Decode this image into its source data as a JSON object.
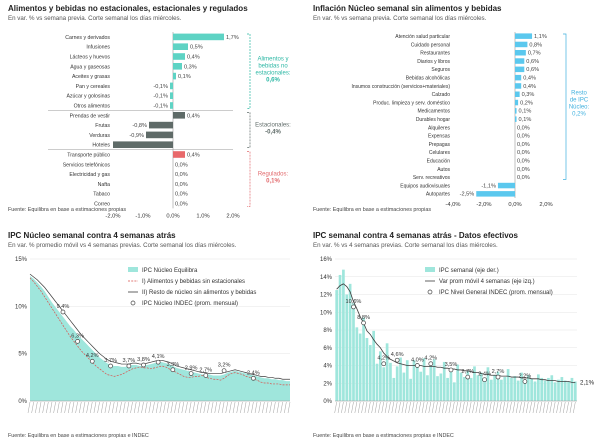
{
  "colors": {
    "teal": "#5ed3c4",
    "teal_light": "#9fe6dc",
    "teal_text": "#2bb7a4",
    "gray": "#5f6b68",
    "red": "#e8696b",
    "red_text": "#e26a6d",
    "blue": "#5bc8ee",
    "blue_text": "#3fb0de",
    "line_dark": "#3c3c3c",
    "line_red": "#d9534f"
  },
  "panels": {
    "p1": {
      "title": "Alimentos y bebidas no estacionales, estacionales y regulados",
      "subtitle": "En var. % vs semana previa. Corte semanal los días miércoles.",
      "source": "Fuente: Equilibra en base a estimaciones propias"
    },
    "p2": {
      "title": "Inflación Núcleo semanal sin alimentos y bebidas",
      "subtitle": "En var. % vs semana previa. Corte semanal los días miércoles.",
      "source": "Fuente: Equilibra en base a estimaciones propias"
    },
    "p3": {
      "title": "IPC Núcleo semanal contra 4 semanas atrás",
      "subtitle": "En var. % promedio móvil vs 4 semanas previas. Corte semanal los días miércoles.",
      "source": "Fuente: Equilibra en base a estimaciones propias e INDEC"
    },
    "p4": {
      "title": "IPC semanal contra 4 semanas atrás - Datos efectivos",
      "subtitle": "En var. % vs 4 semanas previas. Corte semanal los días miércoles.",
      "source": "Fuente: Equilibra en base a estimaciones propias e INDEC"
    }
  },
  "chart_data": [
    {
      "type": "bar",
      "orientation": "horizontal",
      "categories": [
        "Carnes y derivados",
        "Infusiones",
        "Lácteos y huevos",
        "Agua y gaseosas",
        "Aceites y grasas",
        "Pan y cereales",
        "Azúcar y golosinas",
        "Otros alimentos",
        "Prendas de vestir",
        "Frutas",
        "Verduras",
        "Hoteles",
        "Transporte público",
        "Servicios telefónicos",
        "Electricidad y gas",
        "Nafta",
        "Tabaco",
        "Correo"
      ],
      "values": [
        1.7,
        0.5,
        0.4,
        0.3,
        0.1,
        -0.1,
        -0.1,
        -0.1,
        0.4,
        -0.8,
        -0.9,
        -2.0,
        0.4,
        0.0,
        0.0,
        0.0,
        0.0,
        0.0
      ],
      "data_labels": [
        "1,7%",
        "0,5%",
        "0,4%",
        "0,3%",
        "0,1%",
        "-0,1%",
        "-0,1%",
        "-0,1%",
        "0,4%",
        "-0,8%",
        "-0,9%",
        "",
        "0,4%",
        "0,0%",
        "0,0%",
        "0,0%",
        "0,0%",
        "0,0%"
      ],
      "groups": [
        {
          "label": "Alimentos y bebidas no estacionales:",
          "value": "0,6%",
          "from": 0,
          "to": 7,
          "color": "#2bb7a4"
        },
        {
          "label": "Estacionales:",
          "value": "-0,4%",
          "from": 8,
          "to": 11,
          "color": "#5f6b68"
        },
        {
          "label": "Regulados:",
          "value": "0,1%",
          "from": 12,
          "to": 17,
          "color": "#e26a6d"
        }
      ],
      "xlim": [
        -2.0,
        2.0
      ],
      "xticks": [
        "-2,0%",
        "-1,0%",
        "0,0%",
        "1,0%",
        "2,0%"
      ]
    },
    {
      "type": "bar",
      "orientation": "horizontal",
      "categories": [
        "Atención salud particular",
        "Cuidado personal",
        "Restaurantes",
        "Diarios y libros",
        "Seguros",
        "Bebidas alcohólicas",
        "Insumos construcción (servicios+materiales)",
        "Calzado",
        "Produc. limpieza y serv. doméstico",
        "Medicamentos",
        "Durables hogar",
        "Alquileres",
        "Expensas",
        "Prepagas",
        "Celulares",
        "Educación",
        "Autos",
        "Serv. recreativos",
        "Equipos audiovisuales",
        "Autopartes"
      ],
      "values": [
        1.1,
        0.8,
        0.7,
        0.6,
        0.6,
        0.4,
        0.4,
        0.3,
        0.2,
        0.1,
        0.1,
        0.0,
        0.0,
        0.0,
        0.0,
        0.0,
        0.0,
        0.0,
        -1.1,
        -2.5
      ],
      "data_labels": [
        "1,1%",
        "0,8%",
        "0,7%",
        "0,6%",
        "0,6%",
        "0,4%",
        "0,4%",
        "0,3%",
        "0,2%",
        "0,1%",
        "0,1%",
        "0,0%",
        "0,0%",
        "0,0%",
        "0,0%",
        "0,0%",
        "0,0%",
        "0,0%",
        "-1,1%",
        "-2,5%"
      ],
      "annotation": {
        "label": "Resto de IPC Núcleo:",
        "value": "0,2%"
      },
      "xlim": [
        -4.0,
        2.0
      ],
      "xticks": [
        "-4,0%",
        "-2,0%",
        "0,0%",
        "2,0%"
      ]
    },
    {
      "type": "bar+line",
      "ylim": [
        0,
        15
      ],
      "yticks": [
        "0%",
        "5%",
        "10%",
        "15%"
      ],
      "series": [
        {
          "name": "IPC Núcleo Equilibra",
          "kind": "area",
          "values": [
            13.2,
            12.9,
            12.5,
            12.1,
            11.6,
            11.0,
            10.4,
            9.9,
            9.4,
            8.9,
            8.4,
            7.9,
            7.5,
            7.0,
            6.6,
            6.2,
            5.8,
            5.4,
            5.0,
            4.6,
            4.3,
            4.0,
            3.8,
            3.7,
            3.7,
            3.6,
            3.6,
            3.7,
            3.8,
            3.8,
            3.7,
            3.7,
            3.8,
            3.9,
            4.0,
            4.1,
            4.1,
            4.0,
            3.9,
            3.7,
            3.5,
            3.4,
            3.3,
            3.2,
            3.1,
            3.0,
            2.9,
            2.8,
            2.8,
            2.8,
            2.7,
            2.7,
            2.7,
            2.8,
            3.0,
            3.1,
            3.2,
            3.1,
            3.0,
            2.9,
            2.8,
            2.7,
            2.6,
            2.5,
            2.4,
            2.4,
            2.3,
            2.3,
            2.2,
            2.2,
            2.1,
            2.1
          ]
        },
        {
          "name": "I) Alimentos y bebidas sin estacionales",
          "kind": "dashed-line",
          "values": [
            13.0,
            12.6,
            12.1,
            11.6,
            11.0,
            10.4,
            9.8,
            9.2,
            8.6,
            8.0,
            7.4,
            6.8,
            6.3,
            5.8,
            5.3,
            4.9,
            4.5,
            4.1,
            3.7,
            3.4,
            3.1,
            2.8,
            2.7,
            2.6,
            2.7,
            2.8,
            3.0,
            3.2,
            3.4,
            3.5,
            3.6,
            3.5,
            3.5,
            3.4,
            3.5,
            3.6,
            3.7,
            3.6,
            3.4,
            3.2,
            3.0,
            2.8,
            2.6,
            2.5,
            2.5,
            2.6,
            2.6,
            2.7,
            2.5,
            2.4,
            2.3,
            2.3,
            2.2,
            2.4,
            2.7,
            2.9,
            3.0,
            2.9,
            2.8,
            2.6,
            2.5,
            2.3,
            2.2,
            2.0,
            1.9,
            1.9,
            1.8,
            1.8,
            1.8,
            1.7,
            1.7,
            1.7
          ]
        },
        {
          "name": "II) Resto de núcleo sin alimentos y bebidas",
          "kind": "line",
          "values": [
            13.4,
            13.1,
            12.8,
            12.4,
            12.0,
            11.5,
            11.0,
            10.5,
            10.0,
            9.5,
            9.0,
            8.5,
            8.0,
            7.5,
            7.0,
            6.6,
            6.2,
            5.8,
            5.4,
            5.0,
            4.7,
            4.4,
            4.2,
            4.1,
            4.0,
            3.9,
            3.9,
            3.9,
            4.0,
            4.0,
            3.9,
            3.9,
            4.0,
            4.1,
            4.2,
            4.3,
            4.3,
            4.2,
            4.1,
            3.9,
            3.7,
            3.6,
            3.5,
            3.4,
            3.3,
            3.2,
            3.1,
            3.0,
            3.0,
            2.9,
            2.9,
            2.9,
            2.9,
            3.0,
            3.1,
            3.2,
            3.3,
            3.2,
            3.1,
            3.0,
            2.9,
            2.8,
            2.7,
            2.6,
            2.6,
            2.5,
            2.5,
            2.4,
            2.4,
            2.3,
            2.3,
            2.3
          ]
        },
        {
          "name": "IPC Núcleo INDEC (prom. mensual)",
          "kind": "markers",
          "points": [
            {
              "x": 9,
              "y": 9.4
            },
            {
              "x": 13,
              "y": 6.3
            },
            {
              "x": 17,
              "y": 4.2
            },
            {
              "x": 22,
              "y": 3.7
            },
            {
              "x": 27,
              "y": 3.7
            },
            {
              "x": 31,
              "y": 3.8
            },
            {
              "x": 35,
              "y": 4.1
            },
            {
              "x": 39,
              "y": 3.3
            },
            {
              "x": 44,
              "y": 2.9
            },
            {
              "x": 48,
              "y": 2.7
            },
            {
              "x": 53,
              "y": 3.2
            },
            {
              "x": 61,
              "y": 2.4
            }
          ]
        }
      ],
      "data_labels": [
        "9,4%",
        "6,3%",
        "4,2%",
        "3,7%",
        "3,7%",
        "3,8%",
        "4,1%",
        "3,3%",
        "2,9%",
        "2,7%",
        "3,2%",
        "2,4%"
      ]
    },
    {
      "type": "bar+line",
      "ylim": [
        0,
        16
      ],
      "yticks": [
        "0%",
        "2%",
        "4%",
        "6%",
        "8%",
        "10%",
        "12%",
        "14%",
        "16%"
      ],
      "series": [
        {
          "name": "IPC semanal (eje der.)",
          "kind": "bar",
          "values": [
            12.5,
            14.2,
            14.8,
            12.0,
            13.2,
            11.0,
            8.3,
            7.6,
            9.4,
            7.1,
            6.3,
            7.9,
            4.2,
            5.6,
            3.8,
            6.5,
            4.3,
            2.6,
            3.9,
            4.9,
            3.2,
            4.6,
            2.5,
            4.6,
            3.8,
            3.3,
            4.8,
            2.9,
            3.9,
            4.7,
            2.8,
            3.1,
            4.4,
            2.6,
            3.6,
            2.1,
            4.1,
            3.2,
            2.7,
            3.4,
            2.6,
            3.9,
            2.9,
            3.2,
            2.5,
            3.8,
            2.4,
            2.9,
            3.3,
            2.4,
            2.7,
            3.6,
            2.6,
            2.8,
            2.3,
            3.2,
            2.1,
            2.9,
            2.5,
            2.2,
            3.0,
            2.6,
            2.3,
            2.6,
            2.9,
            2.1,
            2.4,
            2.7,
            2.3,
            2.2,
            2.6,
            2.2
          ]
        },
        {
          "name": "Var prom móvil 4 semanas (eje izq.)",
          "kind": "line",
          "values": [
            12.6,
            13.0,
            13.2,
            12.9,
            12.3,
            11.2,
            10.4,
            9.5,
            8.8,
            7.9,
            7.5,
            6.9,
            6.4,
            6.0,
            5.4,
            5.0,
            4.7,
            4.5,
            4.3,
            4.2,
            4.1,
            4.0,
            4.0,
            4.0,
            4.0,
            4.0,
            3.9,
            3.9,
            3.9,
            3.9,
            3.8,
            3.8,
            3.7,
            3.7,
            3.6,
            3.6,
            3.5,
            3.5,
            3.4,
            3.4,
            3.3,
            3.2,
            3.2,
            3.1,
            3.0,
            3.0,
            2.9,
            2.9,
            2.9,
            2.8,
            2.8,
            2.8,
            2.7,
            2.7,
            2.7,
            2.6,
            2.6,
            2.6,
            2.5,
            2.5,
            2.5,
            2.4,
            2.4,
            2.3,
            2.3,
            2.3,
            2.2,
            2.2,
            2.2,
            2.2,
            2.1,
            2.1
          ]
        },
        {
          "name": "IPC Nivel General INDEC (prom. mensual)",
          "kind": "markers",
          "points": [
            {
              "x": 5,
              "y": 10.6
            },
            {
              "x": 8,
              "y": 8.8
            },
            {
              "x": 14,
              "y": 4.2
            },
            {
              "x": 18,
              "y": 4.6
            },
            {
              "x": 24,
              "y": 4.0
            },
            {
              "x": 28,
              "y": 4.2
            },
            {
              "x": 34,
              "y": 3.5
            },
            {
              "x": 39,
              "y": 2.7
            },
            {
              "x": 44,
              "y": 2.4
            },
            {
              "x": 48,
              "y": 2.7
            },
            {
              "x": 56,
              "y": 2.2
            }
          ]
        }
      ],
      "data_labels": [
        "10,6%",
        "8,8%",
        "4,2%",
        "4,6%",
        "4,0%",
        "4,2%",
        "3,5%",
        "2,7%",
        "2,4%",
        "2,7%",
        "2,2%"
      ],
      "last_label": "2,1%"
    }
  ]
}
